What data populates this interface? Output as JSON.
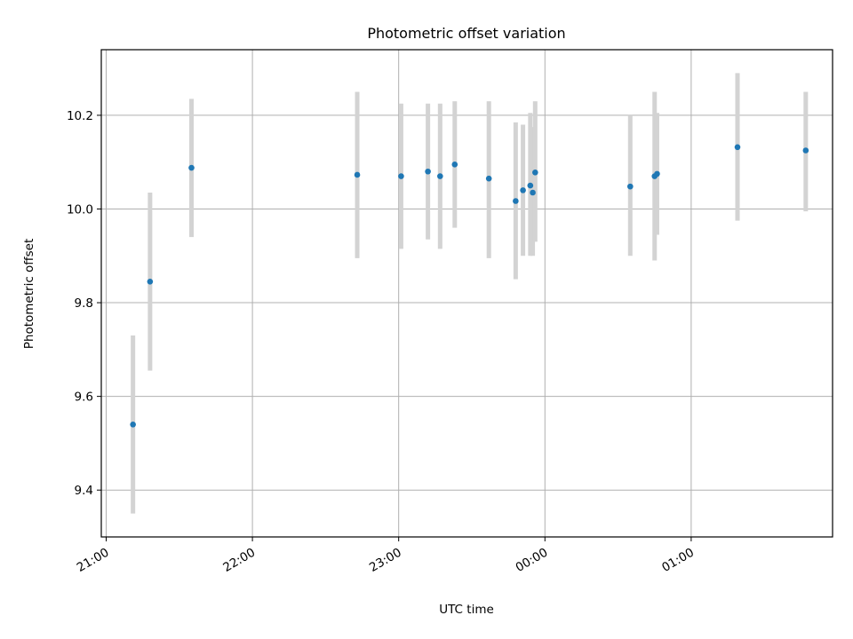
{
  "chart_data": {
    "type": "scatter",
    "title": "Photometric offset variation",
    "xlabel": "UTC time",
    "ylabel": "Photometric offset",
    "x_ticks": [
      "21:00",
      "22:00",
      "23:00",
      "00:00",
      "01:00"
    ],
    "y_ticks": [
      "9.4",
      "9.6",
      "9.8",
      "10.0",
      "10.2"
    ],
    "xlim": [
      "20:58",
      "25:58"
    ],
    "ylim": [
      9.3,
      10.34
    ],
    "grid": true,
    "marker_color": "#1f77b4",
    "errorbar_color": "#d3d3d3",
    "series": [
      {
        "points": [
          {
            "x": "21:11",
            "y": 9.54,
            "lo": 9.35,
            "hi": 9.73
          },
          {
            "x": "21:18",
            "y": 9.845,
            "lo": 9.655,
            "hi": 10.035
          },
          {
            "x": "21:35",
            "y": 10.088,
            "lo": 9.94,
            "hi": 10.235
          },
          {
            "x": "22:43",
            "y": 10.073,
            "lo": 9.895,
            "hi": 10.25
          },
          {
            "x": "23:01",
            "y": 10.07,
            "lo": 9.915,
            "hi": 10.225
          },
          {
            "x": "23:12",
            "y": 10.08,
            "lo": 9.935,
            "hi": 10.225
          },
          {
            "x": "23:17",
            "y": 10.07,
            "lo": 9.915,
            "hi": 10.225
          },
          {
            "x": "23:23",
            "y": 10.095,
            "lo": 9.96,
            "hi": 10.23
          },
          {
            "x": "23:37",
            "y": 10.065,
            "lo": 9.895,
            "hi": 10.23
          },
          {
            "x": "23:48",
            "y": 10.017,
            "lo": 9.85,
            "hi": 10.185
          },
          {
            "x": "23:51",
            "y": 10.04,
            "lo": 9.9,
            "hi": 10.18
          },
          {
            "x": "23:54",
            "y": 10.05,
            "lo": 9.9,
            "hi": 10.205
          },
          {
            "x": "23:55",
            "y": 10.035,
            "lo": 9.9,
            "hi": 10.175
          },
          {
            "x": "23:56",
            "y": 10.078,
            "lo": 9.93,
            "hi": 10.23
          },
          {
            "x": "24:35",
            "y": 10.048,
            "lo": 9.9,
            "hi": 10.2
          },
          {
            "x": "24:45",
            "y": 10.07,
            "lo": 9.89,
            "hi": 10.25
          },
          {
            "x": "24:46",
            "y": 10.075,
            "lo": 9.945,
            "hi": 10.205
          },
          {
            "x": "25:19",
            "y": 10.132,
            "lo": 9.975,
            "hi": 10.29
          },
          {
            "x": "25:47",
            "y": 10.125,
            "lo": 9.995,
            "hi": 10.25
          }
        ]
      }
    ]
  }
}
